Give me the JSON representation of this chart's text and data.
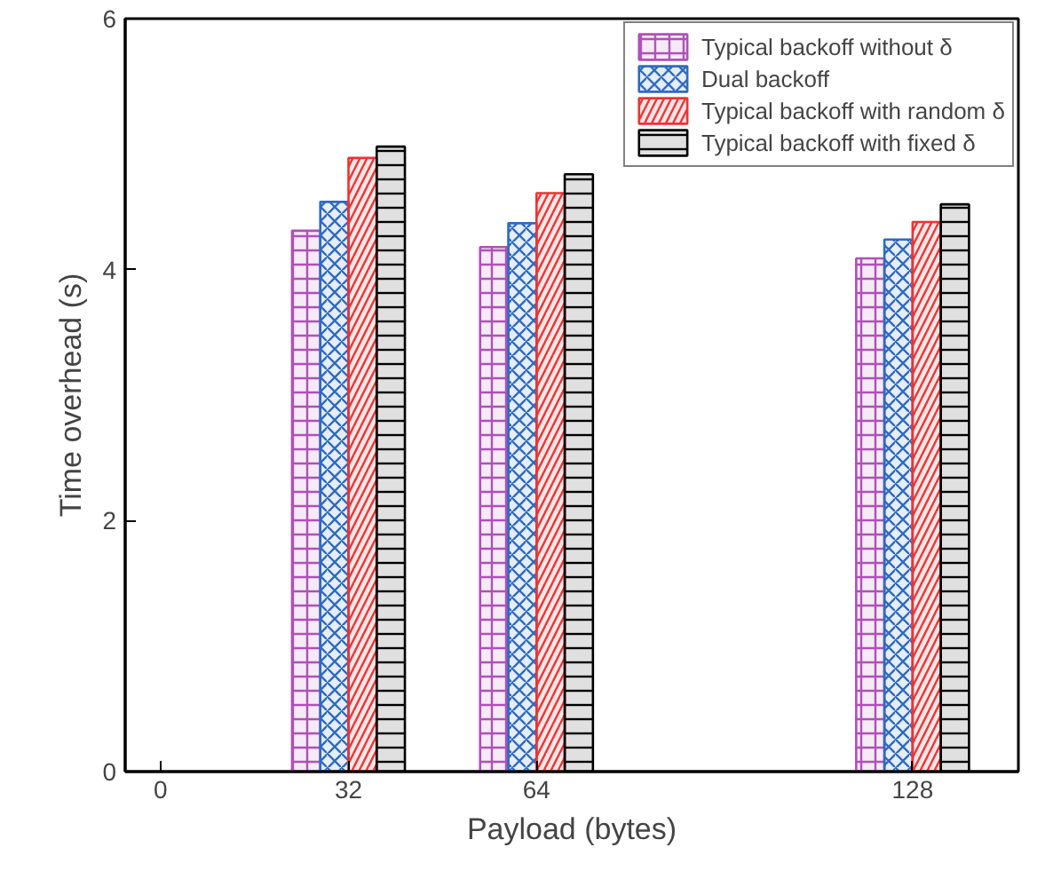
{
  "chart_data": {
    "type": "bar",
    "xlabel": "Payload (bytes)",
    "ylabel": "Time overhead (s)",
    "x": [
      32,
      64,
      128
    ],
    "series": [
      {
        "name": "Typical backoff without δ",
        "color": "#b050b8",
        "values": [
          4.31,
          4.18,
          4.09
        ]
      },
      {
        "name": "Dual backoff",
        "color": "#2e6bc0",
        "values": [
          4.54,
          4.37,
          4.24
        ]
      },
      {
        "name": "Typical backoff with random δ",
        "color": "#ee3333",
        "values": [
          4.89,
          4.61,
          4.38
        ]
      },
      {
        "name": "Typical backoff with fixed δ",
        "color": "#000000",
        "values": [
          4.98,
          4.76,
          4.52
        ]
      }
    ],
    "xlim": [
      -6,
      146
    ],
    "xticks": [
      0,
      32,
      64,
      128
    ],
    "ylim": [
      0,
      6
    ],
    "yticks": [
      0,
      2,
      4,
      6
    ],
    "grid": false,
    "legend": "top right"
  }
}
